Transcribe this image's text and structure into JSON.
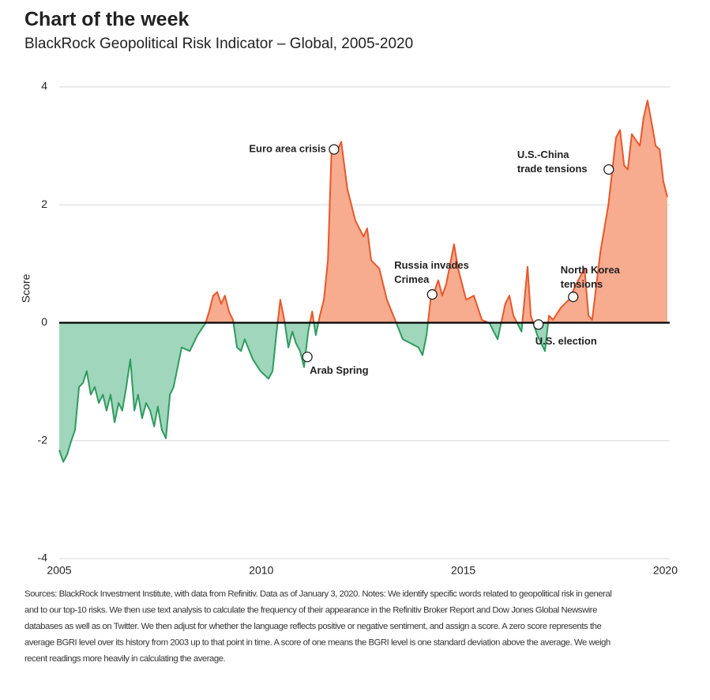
{
  "chart_data": {
    "type": "area",
    "title": "Chart of the week",
    "subtitle": "BlackRock Geopolitical Risk Indicator – Global, 2005-2020",
    "y_label": "Score",
    "x": [
      2005.0,
      2005.1,
      2005.2,
      2005.29,
      2005.39,
      2005.49,
      2005.59,
      2005.68,
      2005.78,
      2005.88,
      2005.98,
      2006.08,
      2006.17,
      2006.27,
      2006.37,
      2006.47,
      2006.56,
      2006.66,
      2006.76,
      2006.86,
      2006.95,
      2007.05,
      2007.15,
      2007.25,
      2007.35,
      2007.44,
      2007.54,
      2007.64,
      2007.74,
      2007.83,
      2008.03,
      2008.23,
      2008.42,
      2008.62,
      2008.71,
      2008.81,
      2008.91,
      2009.01,
      2009.1,
      2009.2,
      2009.3,
      2009.4,
      2009.5,
      2009.59,
      2009.79,
      2009.98,
      2010.18,
      2010.28,
      2010.38,
      2010.47,
      2010.57,
      2010.67,
      2010.77,
      2010.86,
      2010.96,
      2011.06,
      2011.16,
      2011.26,
      2011.35,
      2011.45,
      2011.55,
      2011.65,
      2011.74,
      2011.84,
      2011.98,
      2012.13,
      2012.33,
      2012.53,
      2012.62,
      2012.72,
      2012.92,
      2013.11,
      2013.31,
      2013.5,
      2013.7,
      2013.89,
      2013.99,
      2014.09,
      2014.19,
      2014.28,
      2014.38,
      2014.48,
      2014.58,
      2014.77,
      2014.87,
      2015.07,
      2015.26,
      2015.46,
      2015.65,
      2015.85,
      2016.04,
      2016.14,
      2016.24,
      2016.44,
      2016.59,
      2016.67,
      2016.83,
      2017.02,
      2017.12,
      2017.22,
      2017.41,
      2017.61,
      2017.8,
      2018.0,
      2018.1,
      2018.19,
      2018.39,
      2018.59,
      2018.78,
      2018.88,
      2018.98,
      2019.07,
      2019.17,
      2019.37,
      2019.46,
      2019.56,
      2019.66,
      2019.76,
      2019.86,
      2019.95,
      2020.05
    ],
    "values": [
      -2.16,
      -2.36,
      -2.23,
      -2.02,
      -1.82,
      -1.09,
      -1.02,
      -0.82,
      -1.22,
      -1.09,
      -1.36,
      -1.22,
      -1.49,
      -1.22,
      -1.69,
      -1.36,
      -1.49,
      -1.09,
      -0.62,
      -1.49,
      -1.22,
      -1.62,
      -1.36,
      -1.49,
      -1.76,
      -1.42,
      -1.82,
      -1.96,
      -1.22,
      -1.09,
      -0.42,
      -0.48,
      -0.21,
      -0.01,
      0.19,
      0.46,
      0.52,
      0.32,
      0.46,
      0.19,
      0.05,
      -0.42,
      -0.48,
      -0.28,
      -0.62,
      -0.82,
      -0.95,
      -0.82,
      -0.15,
      0.39,
      0.05,
      -0.42,
      -0.15,
      -0.35,
      -0.48,
      -0.75,
      -0.15,
      0.19,
      -0.21,
      0.12,
      0.39,
      1.06,
      2.94,
      2.87,
      3.07,
      2.27,
      1.73,
      1.46,
      1.6,
      1.06,
      0.92,
      0.39,
      0.05,
      -0.28,
      -0.35,
      -0.42,
      -0.55,
      -0.21,
      0.39,
      0.52,
      0.72,
      0.46,
      0.66,
      1.33,
      0.92,
      0.39,
      0.46,
      0.05,
      -0.01,
      -0.28,
      0.32,
      0.46,
      0.12,
      -0.15,
      0.95,
      0.12,
      -0.21,
      -0.48,
      0.12,
      0.05,
      0.25,
      0.39,
      0.66,
      0.92,
      0.12,
      0.05,
      1.19,
      2.0,
      3.14,
      3.27,
      2.67,
      2.6,
      3.2,
      3.0,
      3.47,
      3.77,
      3.4,
      3.0,
      2.94,
      2.4,
      2.13
    ],
    "color_above": "#e8572a",
    "color_below": "#2e9b5e",
    "fill_above": "#f7ab8f",
    "fill_below": "#9fd6bc",
    "xlim": [
      2005,
      2020.05
    ],
    "ylim": [
      -4,
      4
    ],
    "xticks": [
      2005,
      2010,
      2015,
      2020
    ],
    "yticks": [
      -4,
      -2,
      0,
      2,
      4
    ],
    "grid": true,
    "annotations": [
      {
        "text": [
          "Euro area crisis"
        ],
        "x": 2011.8,
        "y": 2.94
      },
      {
        "text": [
          "Arab Spring"
        ],
        "x": 2011.14,
        "y": -0.58
      },
      {
        "text": [
          "Russia invades",
          "Crimea"
        ],
        "x": 2014.23,
        "y": 0.48
      },
      {
        "text": [
          "U.S. election"
        ],
        "x": 2016.86,
        "y": -0.03
      },
      {
        "text": [
          "North Korea",
          "tensions"
        ],
        "x": 2017.72,
        "y": 0.44
      },
      {
        "text": [
          "U.S.-China",
          "trade tensions"
        ],
        "x": 2018.6,
        "y": 2.6
      }
    ],
    "footnote": [
      "Sources: BlackRock Investment Institute, with data from Refinitiv. Data as of January 3, 2020. Notes: We identify specific words related to geopolitical risk in general",
      "and to our top-10 risks. We then use text analysis to calculate the frequency of their appearance in the Refinitiv Broker Report and Dow Jones Global Newswire",
      "databases as well as on Twitter. We then adjust for whether the language reflects positive or negative sentiment, and assign a score. A zero score represents the",
      "average BGRI level over its history from 2003 up to that point in time. A score of one means the BGRI level is one standard deviation above the average. We weigh",
      "recent readings more heavily in calculating the average."
    ]
  }
}
